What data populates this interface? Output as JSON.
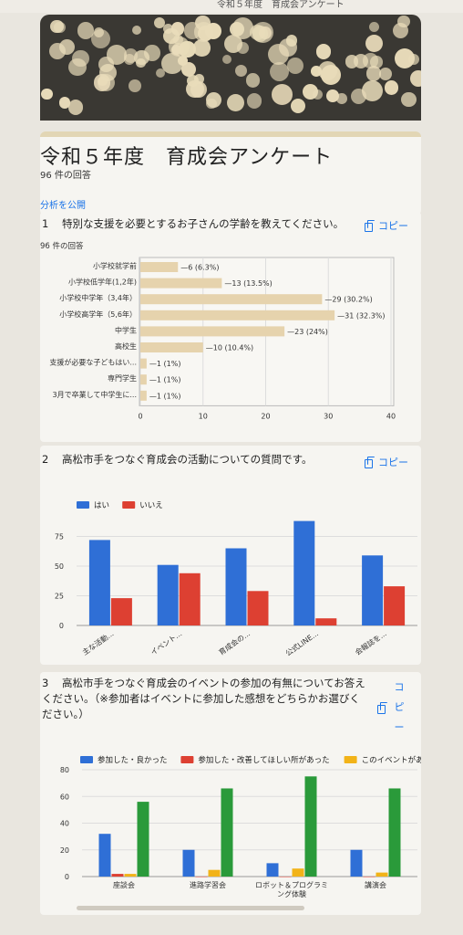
{
  "top_strip_text": "令和５年度　育成会アンケート",
  "header": {
    "title": "令和５年度　育成会アンケート",
    "response_count": "96 件の回答",
    "publish_link": "分析を公開"
  },
  "copy_label": "コピー",
  "q3_copy_label_vertical": "コピー",
  "questions": [
    {
      "number": "1",
      "text": "特別な支援を必要とするお子さんの学齢を教えてください。",
      "response_count": "96 件の回答"
    },
    {
      "number": "2",
      "text": "高松市手をつなぐ育成会の活動についての質問です。"
    },
    {
      "number": "3",
      "text_line1": "高松市手をつなぐ育成会のイベントの参加の有無についてお答え",
      "text_line2": "ください。（※参加者はイベントに参加した感想をどちらかお選びく",
      "text_line3": "ださい。）"
    }
  ],
  "colors": {
    "beige": "#e6d3ad",
    "blue": "#2f6fd6",
    "red": "#dd4032",
    "yellow": "#f2b318",
    "green": "#2a9a3a",
    "link": "#1a73e8"
  },
  "chart_data": [
    {
      "type": "bar",
      "orientation": "horizontal",
      "categories": [
        "小学校就学前",
        "小学校低学年(1,2年)",
        "小学校中学年（3,4年）",
        "小学校高学年（5,6年）",
        "中学生",
        "高校生",
        "支援が必要な子どもはい...",
        "専門学生",
        "3月で卒業して中学生に..."
      ],
      "values": [
        6,
        13,
        29,
        31,
        23,
        10,
        1,
        1,
        1
      ],
      "data_labels": [
        "6 (6.3%)",
        "13 (13.5%)",
        "29 (30.2%)",
        "31 (32.3%)",
        "23 (24%)",
        "10 (10.4%)",
        "1 (1%)",
        "1 (1%)",
        "1 (1%)"
      ],
      "xticks": [
        "0",
        "10",
        "20",
        "30",
        "40"
      ],
      "xlim": [
        0,
        40
      ],
      "grid": true
    },
    {
      "type": "bar",
      "categories": [
        "主な活動...",
        "イベント...",
        "育成会の...",
        "公式LINE...",
        "会報誌を..."
      ],
      "series": [
        {
          "name": "はい",
          "values": [
            72,
            51,
            65,
            88,
            59
          ]
        },
        {
          "name": "いいえ",
          "values": [
            23,
            44,
            29,
            6,
            33
          ]
        }
      ],
      "yticks": [
        "0",
        "25",
        "50",
        "75"
      ],
      "ylim": [
        0,
        90
      ],
      "legend": "top-left",
      "grid": true
    },
    {
      "type": "bar",
      "categories": [
        "座談会",
        "進路学習会",
        "ロボット＆プログラミング体験",
        "講演会"
      ],
      "category_lines": [
        [
          "座談会"
        ],
        [
          "進路学習会"
        ],
        [
          "ロボット＆プログラミ",
          "ング体験"
        ],
        [
          "講演会"
        ]
      ],
      "series": [
        {
          "name": "参加した・良かった",
          "values": [
            32,
            20,
            10,
            20
          ]
        },
        {
          "name": "参加した・改善してほしい所があった",
          "values": [
            2,
            0,
            0,
            0
          ]
        },
        {
          "name": "このイベントがあ",
          "values": [
            2,
            5,
            6,
            3
          ]
        },
        {
          "name": "",
          "values": [
            56,
            66,
            75,
            66
          ]
        }
      ],
      "yticks": [
        "0",
        "20",
        "40",
        "60",
        "80"
      ],
      "ylim": [
        0,
        80
      ],
      "legend": "top",
      "grid": true
    }
  ]
}
